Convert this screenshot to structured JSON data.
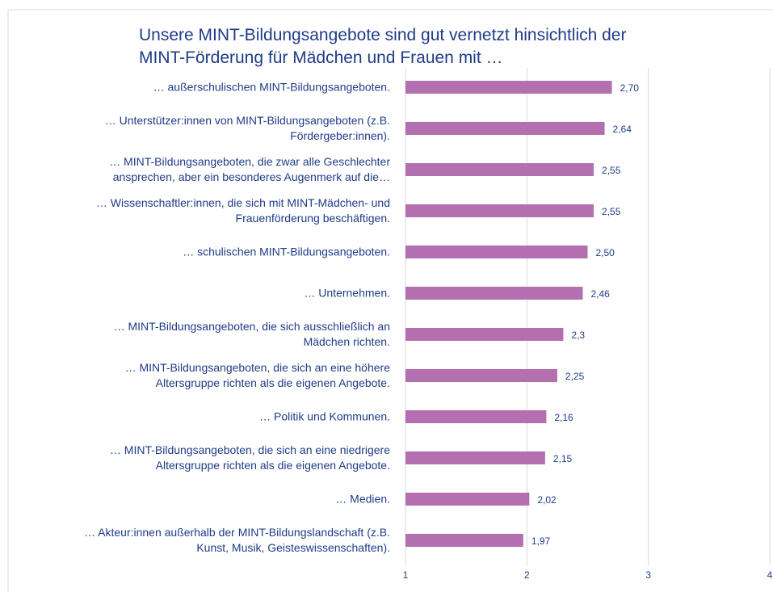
{
  "chart_data": {
    "type": "bar",
    "orientation": "horizontal",
    "title": "Unsere MINT-Bildungsangebote sind gut vernetzt hinsichtlich der\nMINT-Förderung für Mädchen und Frauen mit …",
    "categories": [
      "… außerschulischen MINT-Bildungsangeboten.",
      "… Unterstützer:innen von MINT-Bildungsangeboten (z.B.\nFördergeber:innen).",
      "… MINT-Bildungsangeboten, die zwar alle Geschlechter\nansprechen, aber ein besonderes Augenmerk auf die…",
      "… Wissenschaftler:innen, die sich mit MINT-Mädchen- und\nFrauenförderung beschäftigen.",
      "… schulischen MINT-Bildungsangeboten.",
      "… Unternehmen.",
      "… MINT-Bildungsangeboten, die sich ausschließlich an\nMädchen richten.",
      "… MINT-Bildungsangeboten, die sich an eine höhere\nAltersgruppe richten als die eigenen Angebote.",
      "… Politik und Kommunen.",
      "… MINT-Bildungsangeboten, die sich an eine niedrigere\nAltersgruppe richten als die eigenen Angebote.",
      "… Medien.",
      "… Akteur:innen außerhalb der MINT-Bildungslandschaft (z.B.\nKunst, Musik, Geisteswissenschaften)."
    ],
    "values": [
      2.7,
      2.64,
      2.55,
      2.55,
      2.5,
      2.46,
      2.3,
      2.25,
      2.16,
      2.15,
      2.02,
      1.97
    ],
    "value_labels": [
      "2,70",
      "2,64",
      "2,55",
      "2,55",
      "2,50",
      "2,46",
      "2,3",
      "2,25",
      "2,16",
      "2,15",
      "2,02",
      "1,97"
    ],
    "color": "#b36fb0",
    "xlim": [
      1,
      4
    ],
    "xticks": [
      1,
      2,
      3,
      4
    ],
    "grid": true
  }
}
